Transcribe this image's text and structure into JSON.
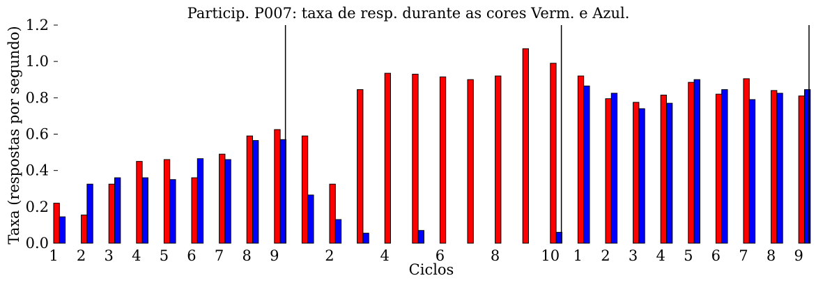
{
  "chart_data": {
    "type": "bar",
    "title": "Particip. P007: taxa de resp. durante as cores Verm. e Azul.",
    "xlabel": "Ciclos",
    "ylabel": "Taxa (respostas por segundo)",
    "ylim": [
      0,
      1.2
    ],
    "yticks": [
      "0.0",
      "0.2",
      "0.4",
      "0.6",
      "0.8",
      "1.0",
      "1.2"
    ],
    "grid": false,
    "legend": "none",
    "x_tick_labels": [
      {
        "x": 1,
        "label": "1"
      },
      {
        "x": 2,
        "label": "2"
      },
      {
        "x": 3,
        "label": "3"
      },
      {
        "x": 4,
        "label": "4"
      },
      {
        "x": 5,
        "label": "5"
      },
      {
        "x": 6,
        "label": "6"
      },
      {
        "x": 7,
        "label": "7"
      },
      {
        "x": 8,
        "label": "8"
      },
      {
        "x": 9,
        "label": "9"
      },
      {
        "x": 11,
        "label": "2"
      },
      {
        "x": 13,
        "label": "4"
      },
      {
        "x": 15,
        "label": "6"
      },
      {
        "x": 17,
        "label": "8"
      },
      {
        "x": 19,
        "label": "10"
      },
      {
        "x": 20,
        "label": "1"
      },
      {
        "x": 21,
        "label": "2"
      },
      {
        "x": 22,
        "label": "3"
      },
      {
        "x": 23,
        "label": "4"
      },
      {
        "x": 24,
        "label": "5"
      },
      {
        "x": 25,
        "label": "6"
      },
      {
        "x": 26,
        "label": "7"
      },
      {
        "x": 27,
        "label": "8"
      },
      {
        "x": 28,
        "label": "9"
      }
    ],
    "phase_boundaries": [
      9.4,
      19.4
    ],
    "xlim": [
      1,
      28.4
    ],
    "colors": {
      "red": "#ff0000",
      "blue": "#0000ff"
    },
    "series": [
      {
        "color": "#ff0000",
        "x": [
          1,
          2,
          3,
          4,
          5,
          6,
          7,
          8,
          9,
          10,
          11,
          12,
          13,
          14,
          15,
          16,
          17,
          18,
          19,
          20,
          21,
          22,
          23,
          24,
          25,
          26,
          27,
          28
        ],
        "values": [
          0.22,
          0.155,
          0.325,
          0.45,
          0.46,
          0.36,
          0.49,
          0.59,
          0.625,
          0.59,
          0.325,
          0.845,
          0.935,
          0.93,
          0.915,
          0.9,
          0.92,
          1.07,
          0.99,
          0.92,
          0.795,
          0.775,
          0.815,
          0.885,
          0.82,
          0.905,
          0.84,
          0.81
        ]
      },
      {
        "color": "#0000ff",
        "x": [
          1,
          2,
          3,
          4,
          5,
          6,
          7,
          8,
          9,
          10,
          11,
          12,
          13,
          14,
          15,
          16,
          17,
          18,
          19,
          20,
          21,
          22,
          23,
          24,
          25,
          26,
          27,
          28
        ],
        "values": [
          0.145,
          0.325,
          0.36,
          0.36,
          0.35,
          0.465,
          0.46,
          0.565,
          0.57,
          0.265,
          0.13,
          0.055,
          0,
          0.07,
          0,
          0,
          0,
          0,
          0.06,
          0.865,
          0.825,
          0.74,
          0.77,
          0.9,
          0.845,
          0.79,
          0.825,
          0.845
        ]
      }
    ]
  }
}
